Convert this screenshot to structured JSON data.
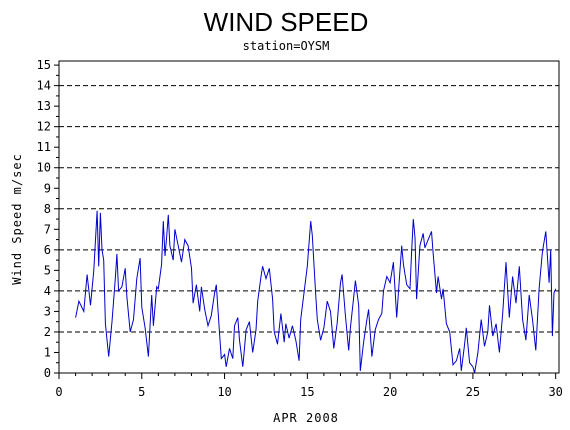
{
  "chart_data": {
    "type": "line",
    "title": "WIND SPEED",
    "subtitle": "station=OYSM",
    "xlabel": "APR 2008",
    "ylabel": "Wind Speed m/sec",
    "xlim": [
      0,
      30.2
    ],
    "ylim": [
      0,
      15.2
    ],
    "x_ticks": [
      0,
      5,
      10,
      15,
      20,
      25,
      30
    ],
    "y_ticks": [
      0,
      1,
      2,
      3,
      4,
      5,
      6,
      7,
      8,
      9,
      10,
      11,
      12,
      13,
      14,
      15
    ],
    "grid": {
      "style": "dashed",
      "y_values": [
        0,
        2,
        4,
        6,
        8,
        10,
        12,
        14
      ]
    },
    "series": [
      {
        "color": "#0000cc",
        "points": [
          [
            1.0,
            2.7
          ],
          [
            1.2,
            3.5
          ],
          [
            1.5,
            3.0
          ],
          [
            1.7,
            4.8
          ],
          [
            1.9,
            3.3
          ],
          [
            2.1,
            5.0
          ],
          [
            2.3,
            7.9
          ],
          [
            2.4,
            5.2
          ],
          [
            2.5,
            7.8
          ],
          [
            2.6,
            6.0
          ],
          [
            2.7,
            5.5
          ],
          [
            2.8,
            2.4
          ],
          [
            3.0,
            0.8
          ],
          [
            3.2,
            2.5
          ],
          [
            3.4,
            4.6
          ],
          [
            3.5,
            5.8
          ],
          [
            3.6,
            4.0
          ],
          [
            3.8,
            4.2
          ],
          [
            4.0,
            5.1
          ],
          [
            4.1,
            3.7
          ],
          [
            4.3,
            2.0
          ],
          [
            4.5,
            2.6
          ],
          [
            4.7,
            4.6
          ],
          [
            4.9,
            5.6
          ],
          [
            5.0,
            3.2
          ],
          [
            5.2,
            2.2
          ],
          [
            5.4,
            0.8
          ],
          [
            5.6,
            3.8
          ],
          [
            5.7,
            2.3
          ],
          [
            5.9,
            4.2
          ],
          [
            6.0,
            4.1
          ],
          [
            6.2,
            5.3
          ],
          [
            6.3,
            7.4
          ],
          [
            6.4,
            5.7
          ],
          [
            6.5,
            6.6
          ],
          [
            6.6,
            7.7
          ],
          [
            6.7,
            6.2
          ],
          [
            6.9,
            5.5
          ],
          [
            7.0,
            7.0
          ],
          [
            7.2,
            6.2
          ],
          [
            7.4,
            5.4
          ],
          [
            7.6,
            6.5
          ],
          [
            7.8,
            6.2
          ],
          [
            8.0,
            5.1
          ],
          [
            8.1,
            3.4
          ],
          [
            8.3,
            4.3
          ],
          [
            8.5,
            3.0
          ],
          [
            8.6,
            4.2
          ],
          [
            8.8,
            3.1
          ],
          [
            9.0,
            2.3
          ],
          [
            9.2,
            2.8
          ],
          [
            9.4,
            3.9
          ],
          [
            9.5,
            4.3
          ],
          [
            9.7,
            1.9
          ],
          [
            9.8,
            0.7
          ],
          [
            10.0,
            0.9
          ],
          [
            10.1,
            0.3
          ],
          [
            10.3,
            1.2
          ],
          [
            10.5,
            0.7
          ],
          [
            10.6,
            2.3
          ],
          [
            10.8,
            2.7
          ],
          [
            10.9,
            1.6
          ],
          [
            11.1,
            0.3
          ],
          [
            11.3,
            2.1
          ],
          [
            11.5,
            2.5
          ],
          [
            11.7,
            1.0
          ],
          [
            11.9,
            2.1
          ],
          [
            12.0,
            3.5
          ],
          [
            12.2,
            4.7
          ],
          [
            12.3,
            5.2
          ],
          [
            12.5,
            4.6
          ],
          [
            12.7,
            5.1
          ],
          [
            12.9,
            3.6
          ],
          [
            13.0,
            2.0
          ],
          [
            13.2,
            1.4
          ],
          [
            13.4,
            2.9
          ],
          [
            13.6,
            1.5
          ],
          [
            13.7,
            2.4
          ],
          [
            13.9,
            1.7
          ],
          [
            14.1,
            2.3
          ],
          [
            14.3,
            1.6
          ],
          [
            14.5,
            0.6
          ],
          [
            14.6,
            2.6
          ],
          [
            14.8,
            3.9
          ],
          [
            15.0,
            5.2
          ],
          [
            15.2,
            7.4
          ],
          [
            15.3,
            6.7
          ],
          [
            15.5,
            3.9
          ],
          [
            15.6,
            2.6
          ],
          [
            15.8,
            1.6
          ],
          [
            16.0,
            2.2
          ],
          [
            16.2,
            3.5
          ],
          [
            16.4,
            3.0
          ],
          [
            16.6,
            1.2
          ],
          [
            16.8,
            2.4
          ],
          [
            17.0,
            4.4
          ],
          [
            17.1,
            4.8
          ],
          [
            17.3,
            2.8
          ],
          [
            17.5,
            1.1
          ],
          [
            17.6,
            2.2
          ],
          [
            17.8,
            3.7
          ],
          [
            17.9,
            4.5
          ],
          [
            18.1,
            3.3
          ],
          [
            18.2,
            0.1
          ],
          [
            18.4,
            1.5
          ],
          [
            18.6,
            2.6
          ],
          [
            18.7,
            3.1
          ],
          [
            18.9,
            0.8
          ],
          [
            19.1,
            2.1
          ],
          [
            19.3,
            2.6
          ],
          [
            19.5,
            2.9
          ],
          [
            19.6,
            4.0
          ],
          [
            19.8,
            4.7
          ],
          [
            20.0,
            4.4
          ],
          [
            20.2,
            5.4
          ],
          [
            20.4,
            2.7
          ],
          [
            20.5,
            3.9
          ],
          [
            20.7,
            6.2
          ],
          [
            20.8,
            5.3
          ],
          [
            21.0,
            4.3
          ],
          [
            21.2,
            4.1
          ],
          [
            21.3,
            5.9
          ],
          [
            21.4,
            7.5
          ],
          [
            21.5,
            6.6
          ],
          [
            21.6,
            3.6
          ],
          [
            21.8,
            6.2
          ],
          [
            22.0,
            6.8
          ],
          [
            22.1,
            6.1
          ],
          [
            22.3,
            6.5
          ],
          [
            22.5,
            6.9
          ],
          [
            22.6,
            5.8
          ],
          [
            22.8,
            3.9
          ],
          [
            22.9,
            4.7
          ],
          [
            23.1,
            3.6
          ],
          [
            23.2,
            4.1
          ],
          [
            23.4,
            2.4
          ],
          [
            23.6,
            2.0
          ],
          [
            23.8,
            0.4
          ],
          [
            24.0,
            0.6
          ],
          [
            24.2,
            1.2
          ],
          [
            24.3,
            0.1
          ],
          [
            24.5,
            1.4
          ],
          [
            24.6,
            2.2
          ],
          [
            24.8,
            0.5
          ],
          [
            25.0,
            0.3
          ],
          [
            25.1,
            0.0
          ],
          [
            25.3,
            1.0
          ],
          [
            25.5,
            2.6
          ],
          [
            25.7,
            1.3
          ],
          [
            25.9,
            2.0
          ],
          [
            26.0,
            3.3
          ],
          [
            26.2,
            1.8
          ],
          [
            26.4,
            2.4
          ],
          [
            26.6,
            1.0
          ],
          [
            26.8,
            2.9
          ],
          [
            27.0,
            5.4
          ],
          [
            27.2,
            2.7
          ],
          [
            27.4,
            4.7
          ],
          [
            27.6,
            3.4
          ],
          [
            27.8,
            5.2
          ],
          [
            28.0,
            2.6
          ],
          [
            28.2,
            1.6
          ],
          [
            28.4,
            3.8
          ],
          [
            28.6,
            2.6
          ],
          [
            28.8,
            1.1
          ],
          [
            29.0,
            4.1
          ],
          [
            29.2,
            5.9
          ],
          [
            29.4,
            6.9
          ],
          [
            29.6,
            4.4
          ],
          [
            29.7,
            6.0
          ],
          [
            29.8,
            1.8
          ],
          [
            29.9,
            3.9
          ],
          [
            30.0,
            4.1
          ]
        ]
      }
    ]
  }
}
